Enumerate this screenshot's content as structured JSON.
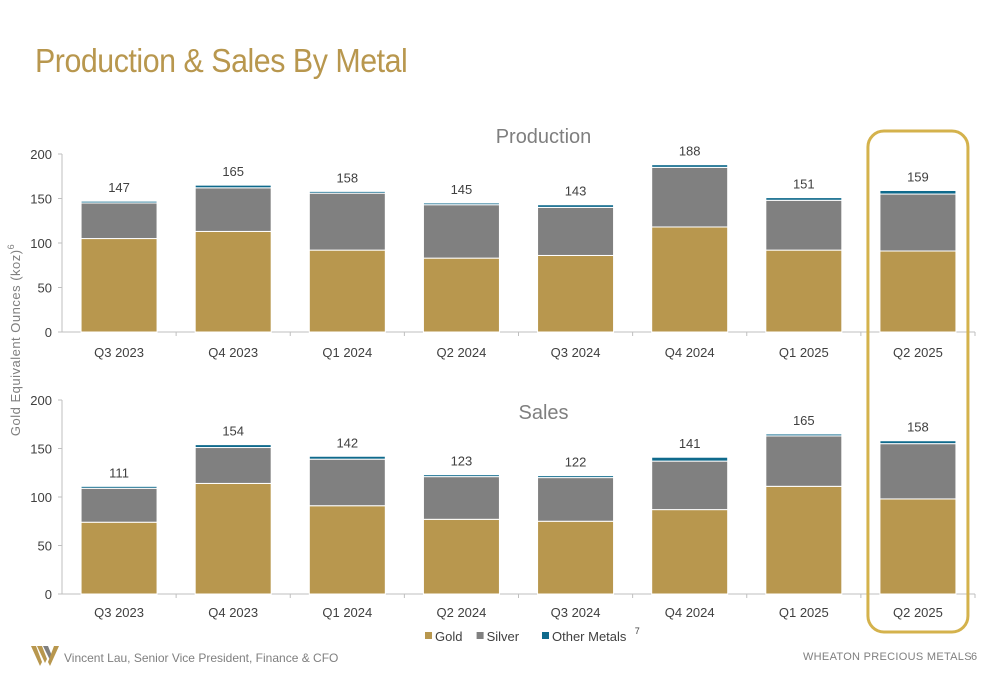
{
  "title": "Production & Sales By Metal",
  "y_axis_label": "Gold Equivalent Ounces (koz)",
  "y_axis_label_footnote": "6",
  "legend_footnote": "7",
  "footer": {
    "presenter": "Vincent Lau, Senior Vice President, Finance & CFO",
    "company": "WHEATON  PRECIOUS METALS",
    "page_number": "6"
  },
  "colors": {
    "gold": "#B8974E",
    "silver": "#808080",
    "other_metals": "#0F6A8C",
    "title": "#B8974E",
    "highlight_box": "#D4B24C"
  },
  "highlight": {
    "category": "Q2 2025"
  },
  "chart_data": [
    {
      "type": "bar",
      "stacked": true,
      "title": "Production",
      "ylim": [
        0,
        200
      ],
      "yticks": [
        0,
        50,
        100,
        150,
        200
      ],
      "categories": [
        "Q3 2023",
        "Q4 2023",
        "Q1 2024",
        "Q2 2024",
        "Q3 2024",
        "Q4 2024",
        "Q1 2025",
        "Q2 2025"
      ],
      "series": [
        {
          "name": "Gold",
          "values": [
            105,
            113,
            92,
            83,
            86,
            118,
            92,
            91
          ]
        },
        {
          "name": "Silver",
          "values": [
            40,
            49,
            64,
            60,
            54,
            67,
            56,
            64
          ]
        },
        {
          "name": "Other Metals",
          "values": [
            2,
            3,
            2,
            2,
            3,
            3,
            3,
            4
          ]
        }
      ],
      "totals": [
        147,
        165,
        158,
        145,
        143,
        188,
        151,
        159
      ]
    },
    {
      "type": "bar",
      "stacked": true,
      "title": "Sales",
      "ylim": [
        0,
        200
      ],
      "yticks": [
        0,
        50,
        100,
        150,
        200
      ],
      "categories": [
        "Q3 2023",
        "Q4 2023",
        "Q1 2024",
        "Q2 2024",
        "Q3 2024",
        "Q4 2024",
        "Q1 2025",
        "Q2 2025"
      ],
      "series": [
        {
          "name": "Gold",
          "values": [
            74,
            114,
            91,
            77,
            75,
            87,
            111,
            98
          ]
        },
        {
          "name": "Silver",
          "values": [
            35,
            37,
            48,
            44,
            45,
            50,
            52,
            57
          ]
        },
        {
          "name": "Other Metals",
          "values": [
            2,
            3,
            3,
            2,
            2,
            4,
            2,
            3
          ]
        }
      ],
      "totals": [
        111,
        154,
        142,
        123,
        122,
        141,
        165,
        158
      ],
      "legend": [
        "Gold",
        "Silver",
        "Other Metals"
      ],
      "legend_position": "bottom"
    }
  ]
}
